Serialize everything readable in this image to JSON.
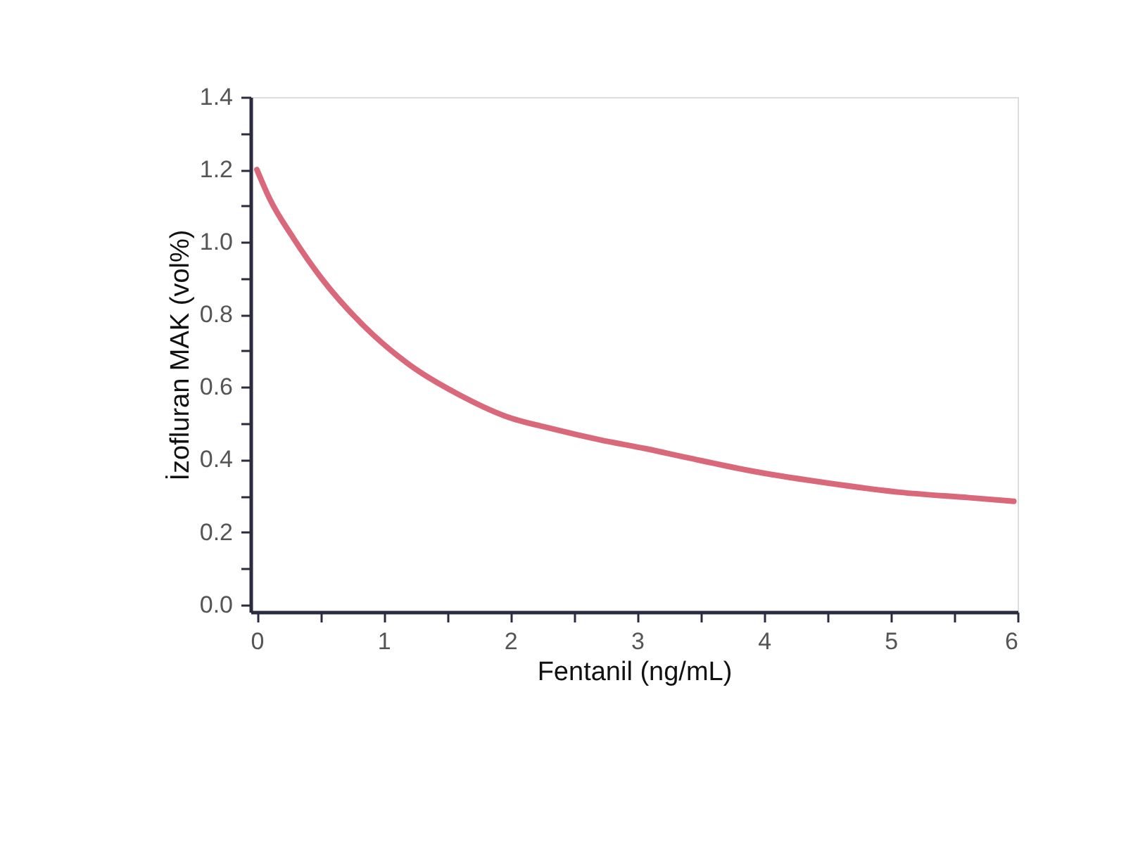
{
  "chart_data": {
    "type": "line",
    "xlabel": "Fentanil (ng/mL)",
    "ylabel": "İzofluran MAK  (vol%)",
    "xlim": [
      -0.05,
      6
    ],
    "ylim": [
      -0.02,
      1.4
    ],
    "xticks": [
      0,
      {
        "value": 0.5,
        "label": null
      },
      1,
      {
        "value": 1.5,
        "label": null
      },
      2,
      {
        "value": 2.5,
        "label": null
      },
      3,
      {
        "value": 3.5,
        "label": null
      },
      4,
      {
        "value": 4.5,
        "label": null
      },
      5,
      {
        "value": 5.5,
        "label": null
      },
      6
    ],
    "yticks": [
      {
        "value": 0,
        "label": "0.0"
      },
      {
        "value": 0.1,
        "label": null
      },
      0.2,
      {
        "value": 0.3,
        "label": null
      },
      0.4,
      {
        "value": 0.5,
        "label": null
      },
      0.6,
      {
        "value": 0.7,
        "label": null
      },
      0.8,
      {
        "value": 0.9,
        "label": null
      },
      {
        "value": 1,
        "label": "1.0"
      },
      {
        "value": 1.1,
        "label": null
      },
      1.2,
      {
        "value": 1.3,
        "label": null
      },
      1.4
    ],
    "grid": false,
    "marker": "none",
    "line_style": "solid",
    "series": [
      {
        "color": "#d9687a",
        "x": [
          0,
          0.1,
          0.29,
          0.51,
          0.84,
          1.21,
          1.59,
          1.96,
          2.33,
          2.7,
          3.07,
          3.4,
          3.96,
          4.51,
          5.07,
          5.62,
          5.97
        ],
        "values": [
          1.2,
          1.12,
          1.01,
          0.9,
          0.77,
          0.66,
          0.58,
          0.52,
          0.485,
          0.455,
          0.43,
          0.405,
          0.365,
          0.335,
          0.31,
          0.295,
          0.285
        ]
      }
    ]
  }
}
